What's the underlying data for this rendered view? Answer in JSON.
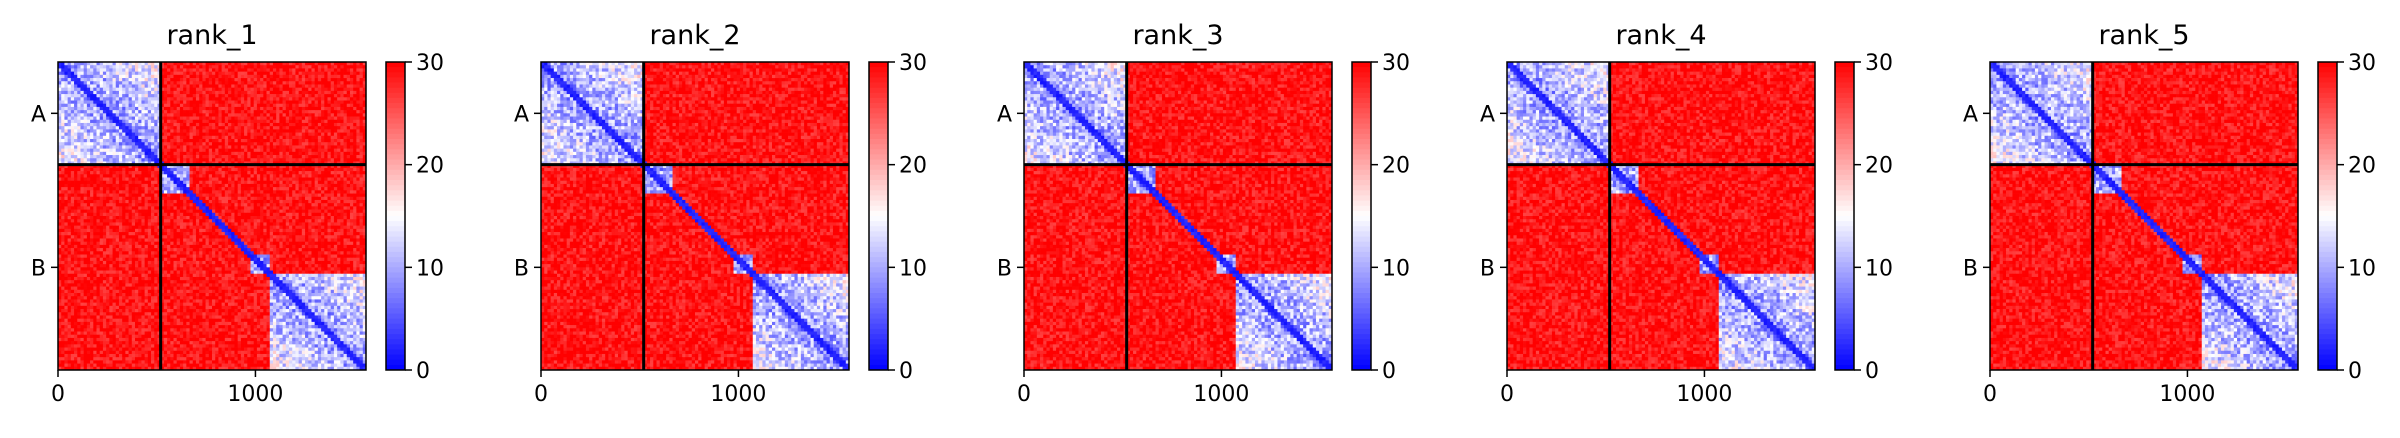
{
  "chart_data": [
    {
      "type": "heatmap",
      "title": "rank_1",
      "colormap": "bwr",
      "vmin": 0,
      "vmax": 30,
      "colorbar_ticks": [
        0,
        10,
        20,
        30
      ],
      "x_range": [
        0,
        1560
      ],
      "x_ticks": [
        0,
        1000
      ],
      "y_ticks": [
        "A",
        "B"
      ],
      "chain_boundaries": [
        520
      ],
      "domains": [
        {
          "start": 0,
          "end": 520
        },
        {
          "start": 520,
          "end": 660
        },
        {
          "start": 980,
          "end": 1080
        },
        {
          "start": 1080,
          "end": 1560
        }
      ]
    },
    {
      "type": "heatmap",
      "title": "rank_2",
      "colormap": "bwr",
      "vmin": 0,
      "vmax": 30,
      "colorbar_ticks": [
        0,
        10,
        20,
        30
      ],
      "x_range": [
        0,
        1560
      ],
      "x_ticks": [
        0,
        1000
      ],
      "y_ticks": [
        "A",
        "B"
      ],
      "chain_boundaries": [
        520
      ],
      "domains": [
        {
          "start": 0,
          "end": 520
        },
        {
          "start": 520,
          "end": 660
        },
        {
          "start": 980,
          "end": 1080
        },
        {
          "start": 1080,
          "end": 1560
        }
      ]
    },
    {
      "type": "heatmap",
      "title": "rank_3",
      "colormap": "bwr",
      "vmin": 0,
      "vmax": 30,
      "colorbar_ticks": [
        0,
        10,
        20,
        30
      ],
      "x_range": [
        0,
        1560
      ],
      "x_ticks": [
        0,
        1000
      ],
      "y_ticks": [
        "A",
        "B"
      ],
      "chain_boundaries": [
        520
      ],
      "domains": [
        {
          "start": 0,
          "end": 520
        },
        {
          "start": 520,
          "end": 660
        },
        {
          "start": 980,
          "end": 1080
        },
        {
          "start": 1080,
          "end": 1560
        }
      ]
    },
    {
      "type": "heatmap",
      "title": "rank_4",
      "colormap": "bwr",
      "vmin": 0,
      "vmax": 30,
      "colorbar_ticks": [
        0,
        10,
        20,
        30
      ],
      "x_range": [
        0,
        1560
      ],
      "x_ticks": [
        0,
        1000
      ],
      "y_ticks": [
        "A",
        "B"
      ],
      "chain_boundaries": [
        520
      ],
      "domains": [
        {
          "start": 0,
          "end": 520
        },
        {
          "start": 520,
          "end": 660
        },
        {
          "start": 980,
          "end": 1080
        },
        {
          "start": 1080,
          "end": 1560
        }
      ]
    },
    {
      "type": "heatmap",
      "title": "rank_5",
      "colormap": "bwr",
      "vmin": 0,
      "vmax": 30,
      "colorbar_ticks": [
        0,
        10,
        20,
        30
      ],
      "x_range": [
        0,
        1560
      ],
      "x_ticks": [
        0,
        1000
      ],
      "y_ticks": [
        "A",
        "B"
      ],
      "chain_boundaries": [
        520
      ],
      "domains": [
        {
          "start": 0,
          "end": 520
        },
        {
          "start": 520,
          "end": 660
        },
        {
          "start": 980,
          "end": 1080
        },
        {
          "start": 1080,
          "end": 1560
        }
      ]
    }
  ],
  "colors": {
    "low": "#0000ff",
    "mid": "#ffffff",
    "high": "#ff0000",
    "frame": "#000000"
  }
}
